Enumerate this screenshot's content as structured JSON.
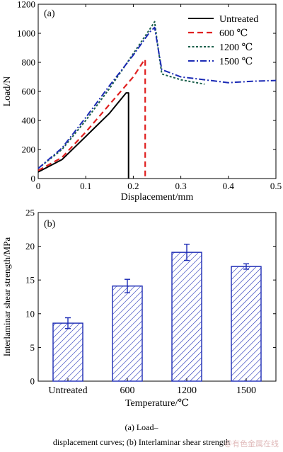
{
  "chart_data": [
    {
      "type": "line",
      "panel_label": "(a)",
      "xlabel": "Displacement/mm",
      "ylabel": "Load/N",
      "xlim": [
        0,
        0.5
      ],
      "ylim": [
        0,
        1200
      ],
      "xticks": [
        "0",
        "0.1",
        "0.2",
        "0.3",
        "0.4",
        "0.5"
      ],
      "yticks": [
        "0",
        "200",
        "400",
        "600",
        "800",
        "1000",
        "1200"
      ],
      "legend_position": "top-right",
      "series": [
        {
          "name": "Untreated",
          "color": "#000000",
          "dash": "solid",
          "x": [
            0.0,
            0.05,
            0.1,
            0.15,
            0.185,
            0.19,
            0.19
          ],
          "y": [
            45,
            130,
            290,
            450,
            590,
            590,
            0
          ]
        },
        {
          "name": "600 ℃",
          "color": "#e02020",
          "dash": "dashed",
          "x": [
            0.0,
            0.05,
            0.1,
            0.15,
            0.2,
            0.22,
            0.225,
            0.225
          ],
          "y": [
            55,
            145,
            320,
            510,
            700,
            800,
            820,
            0
          ]
        },
        {
          "name": "1200 ℃",
          "color": "#1a5f4a",
          "dash": "dotted",
          "x": [
            0.0,
            0.05,
            0.1,
            0.15,
            0.2,
            0.235,
            0.245,
            0.25,
            0.26,
            0.3,
            0.35
          ],
          "y": [
            70,
            200,
            400,
            620,
            860,
            1030,
            1080,
            950,
            720,
            680,
            650
          ]
        },
        {
          "name": "1500 ℃",
          "color": "#1c2bb5",
          "dash": "dashdot",
          "x": [
            0.0,
            0.05,
            0.1,
            0.15,
            0.2,
            0.235,
            0.245,
            0.255,
            0.26,
            0.3,
            0.35,
            0.4,
            0.45,
            0.5
          ],
          "y": [
            70,
            210,
            420,
            640,
            850,
            1010,
            1040,
            840,
            750,
            700,
            680,
            660,
            670,
            675
          ]
        }
      ]
    },
    {
      "type": "bar",
      "panel_label": "(b)",
      "xlabel": "Temperature/℃",
      "ylabel": "Interlaminar shear strength/MPa",
      "ylim": [
        0,
        25
      ],
      "yticks": [
        "0",
        "5",
        "10",
        "15",
        "20",
        "25"
      ],
      "categories": [
        "Untreated",
        "600",
        "1200",
        "1500"
      ],
      "values": [
        8.6,
        14.1,
        19.1,
        17.0
      ],
      "errors": [
        0.8,
        1.0,
        1.2,
        0.4
      ],
      "bar_color": "#1c2bb5",
      "fill": "hatched"
    }
  ],
  "caption": {
    "line1": "(a)    Load–",
    "line2": "displacement curves; (b) Interlaminar shear strength"
  },
  "watermark": "＠有色金属在线"
}
